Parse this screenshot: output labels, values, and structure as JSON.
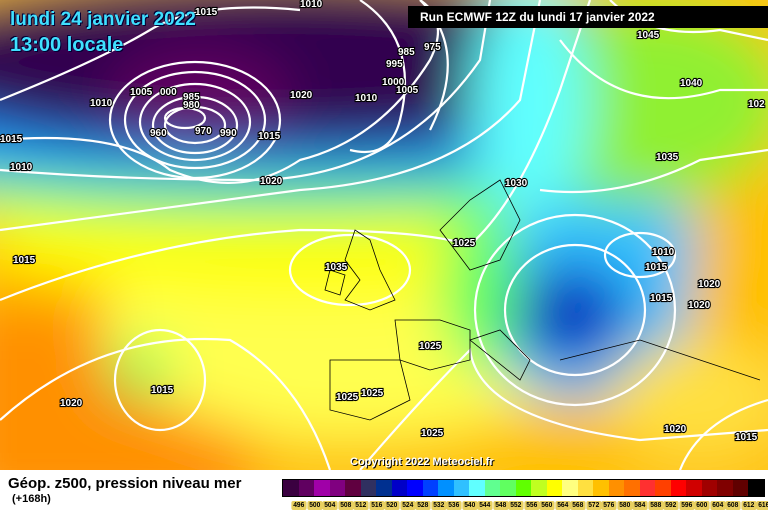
{
  "header": {
    "date": "lundi 24 janvier 2022",
    "time": "13:00 locale",
    "run": "Run ECMWF 12Z du lundi 17 janvier 2022"
  },
  "copyright": "Copyright 2022 Meteociel.fr",
  "legend": {
    "title": "Géop. z500, pression niveau mer",
    "lead": "(+168h)",
    "values": [
      "496",
      "500",
      "504",
      "508",
      "512",
      "516",
      "520",
      "524",
      "528",
      "532",
      "536",
      "540",
      "544",
      "548",
      "552",
      "556",
      "560",
      "564",
      "568",
      "572",
      "576",
      "580",
      "584",
      "588",
      "592",
      "596",
      "600",
      "604",
      "608",
      "612",
      "616"
    ],
    "colors": [
      "#3a0040",
      "#600060",
      "#a000a8",
      "#800080",
      "#600040",
      "#303060",
      "#003090",
      "#0000c8",
      "#0000ff",
      "#0040ff",
      "#0090ff",
      "#30c0ff",
      "#60ffff",
      "#60ff90",
      "#60ff60",
      "#60ff00",
      "#c0ff20",
      "#ffff00",
      "#ffff80",
      "#ffe040",
      "#ffc000",
      "#ff9000",
      "#ff7000",
      "#ff3030",
      "#ff4000",
      "#ff0000",
      "#d00000",
      "#a00000",
      "#800000",
      "#600000",
      "#000000"
    ]
  },
  "isobar_labels": [
    "1015",
    "1010",
    "1005",
    "000",
    "985",
    "980",
    "960",
    "970",
    "990",
    "1010",
    "1015",
    "1010",
    "1020",
    "1015",
    "1020",
    "1010",
    "1000",
    "1005",
    "995",
    "985",
    "975",
    "1045",
    "1040",
    "1035",
    "1030",
    "1025",
    "1035",
    "1015",
    "1010",
    "1015",
    "1015",
    "1020",
    "1020",
    "1025",
    "1025",
    "1025",
    "1015",
    "1020",
    "1025",
    "1020",
    "1015",
    "102"
  ]
}
